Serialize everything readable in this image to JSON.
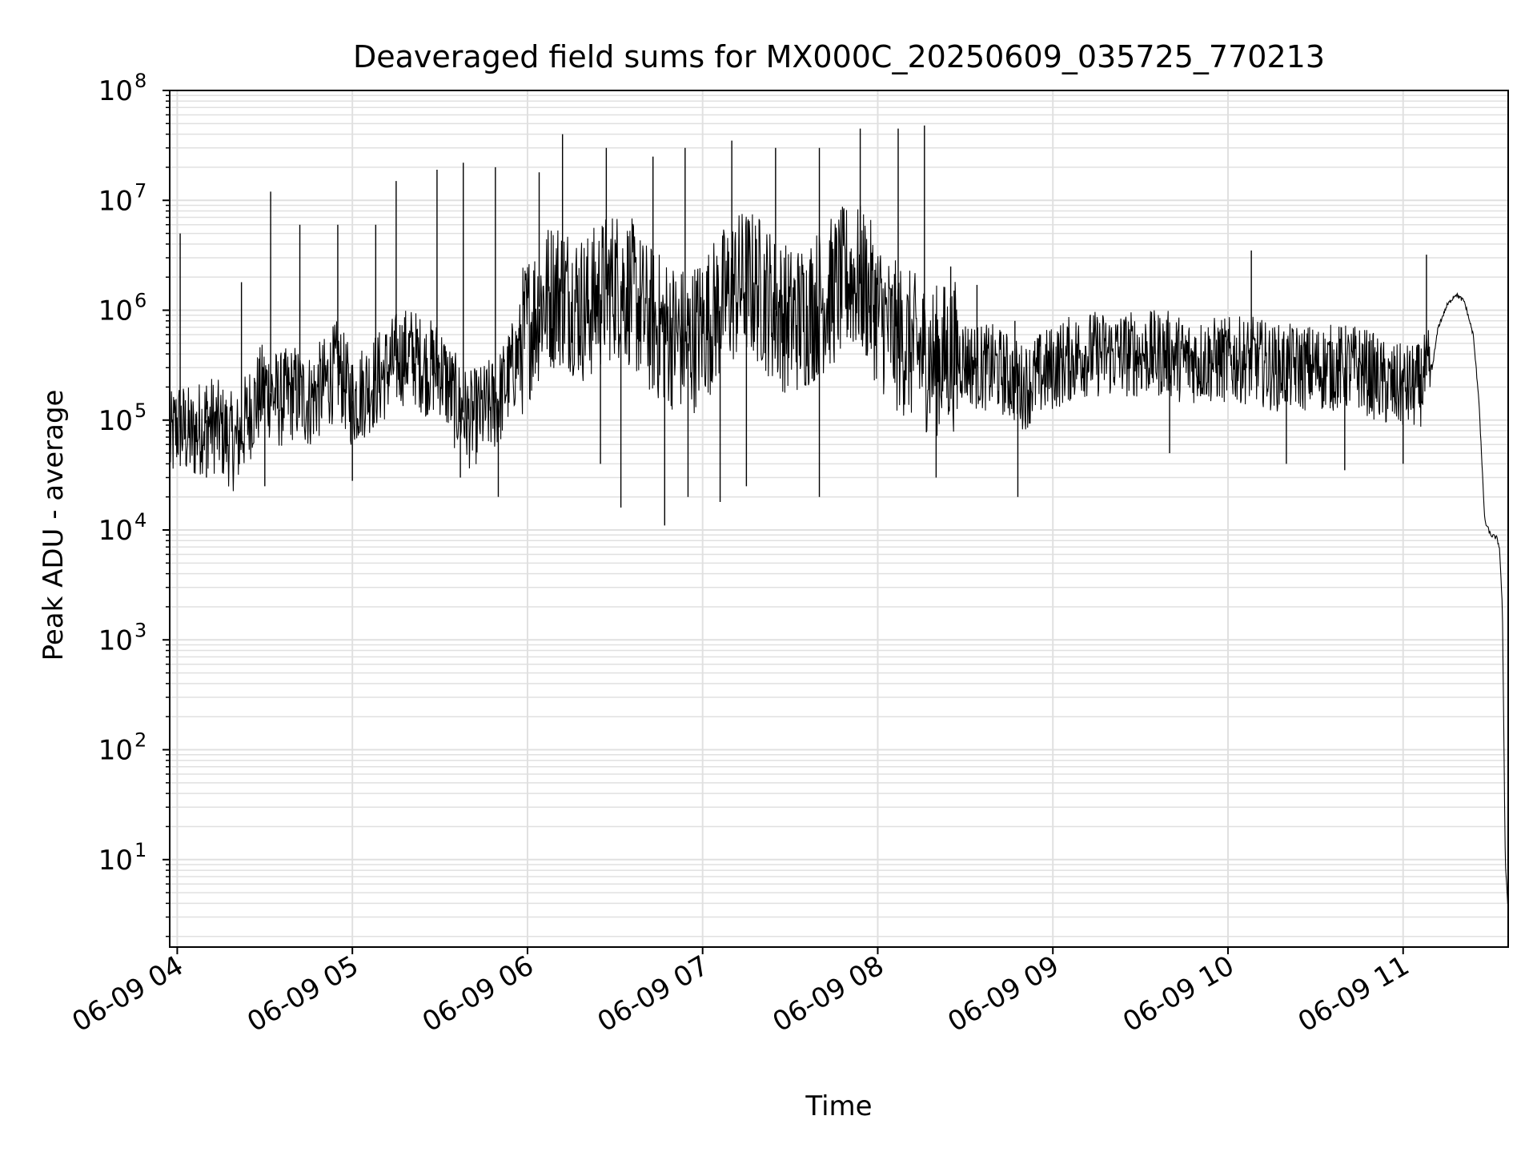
{
  "chart_data": {
    "type": "line",
    "title": "Deaveraged field sums for MX000C_20250609_035725_770213",
    "xlabel": "Time",
    "ylabel": "Peak ADU - average",
    "yscale": "log",
    "ylim": [
      1.6,
      100000000
    ],
    "xlim": [
      "2025-06-09 03:57:25",
      "2025-06-09 11:36:00"
    ],
    "grid": true,
    "legend": "none",
    "line_color": "#000000",
    "grid_color": "#e0e0e0",
    "x_ticks": [
      {
        "t": "2025-06-09 04:00",
        "label": "06-09 04"
      },
      {
        "t": "2025-06-09 05:00",
        "label": "06-09 05"
      },
      {
        "t": "2025-06-09 06:00",
        "label": "06-09 06"
      },
      {
        "t": "2025-06-09 07:00",
        "label": "06-09 07"
      },
      {
        "t": "2025-06-09 08:00",
        "label": "06-09 08"
      },
      {
        "t": "2025-06-09 09:00",
        "label": "06-09 09"
      },
      {
        "t": "2025-06-09 10:00",
        "label": "06-09 10"
      },
      {
        "t": "2025-06-09 11:00",
        "label": "06-09 11"
      }
    ],
    "y_ticks": [
      {
        "value": 10,
        "base": "10",
        "exp": "1"
      },
      {
        "value": 100,
        "base": "10",
        "exp": "2"
      },
      {
        "value": 1000,
        "base": "10",
        "exp": "3"
      },
      {
        "value": 10000,
        "base": "10",
        "exp": "4"
      },
      {
        "value": 100000,
        "base": "10",
        "exp": "5"
      },
      {
        "value": 1000000,
        "base": "10",
        "exp": "6"
      },
      {
        "value": 10000000,
        "base": "10",
        "exp": "7"
      },
      {
        "value": 100000000,
        "base": "10",
        "exp": "8"
      }
    ],
    "series": [
      {
        "points": [
          [
            "2025-06-09 03:57:30",
            60000
          ],
          [
            "2025-06-09 04:00",
            90000
          ],
          [
            "2025-06-09 04:05",
            70000
          ],
          [
            "2025-06-09 04:10",
            100000
          ],
          [
            "2025-06-09 04:15",
            80000
          ],
          [
            "2025-06-09 04:20",
            60000
          ],
          [
            "2025-06-09 04:25",
            120000
          ],
          [
            "2025-06-09 04:30",
            200000
          ],
          [
            "2025-06-09 04:35",
            150000
          ],
          [
            "2025-06-09 04:40",
            180000
          ],
          [
            "2025-06-09 04:45",
            150000
          ],
          [
            "2025-06-09 04:50",
            200000
          ],
          [
            "2025-06-09 04:55",
            300000
          ],
          [
            "2025-06-09 05:00",
            150000
          ],
          [
            "2025-06-09 05:05",
            200000
          ],
          [
            "2025-06-09 05:10",
            250000
          ],
          [
            "2025-06-09 05:15",
            350000
          ],
          [
            "2025-06-09 05:20",
            400000
          ],
          [
            "2025-06-09 05:25",
            300000
          ],
          [
            "2025-06-09 05:30",
            300000
          ],
          [
            "2025-06-09 05:35",
            150000
          ],
          [
            "2025-06-09 05:40",
            100000
          ],
          [
            "2025-06-09 05:45",
            120000
          ],
          [
            "2025-06-09 05:50",
            150000
          ],
          [
            "2025-06-09 05:55",
            300000
          ],
          [
            "2025-06-09 06:00",
            700000
          ],
          [
            "2025-06-09 06:05",
            1200000
          ],
          [
            "2025-06-09 06:10",
            1500000
          ],
          [
            "2025-06-09 06:15",
            1300000
          ],
          [
            "2025-06-09 06:20",
            1000000
          ],
          [
            "2025-06-09 06:25",
            1400000
          ],
          [
            "2025-06-09 06:30",
            1800000
          ],
          [
            "2025-06-09 06:35",
            1500000
          ],
          [
            "2025-06-09 06:40",
            900000
          ],
          [
            "2025-06-09 06:45",
            700000
          ],
          [
            "2025-06-09 06:50",
            600000
          ],
          [
            "2025-06-09 06:55",
            500000
          ],
          [
            "2025-06-09 07:00",
            700000
          ],
          [
            "2025-06-09 07:05",
            1000000
          ],
          [
            "2025-06-09 07:10",
            1500000
          ],
          [
            "2025-06-09 07:15",
            1800000
          ],
          [
            "2025-06-09 07:20",
            1500000
          ],
          [
            "2025-06-09 07:25",
            1000000
          ],
          [
            "2025-06-09 07:30",
            800000
          ],
          [
            "2025-06-09 07:35",
            900000
          ],
          [
            "2025-06-09 07:40",
            1200000
          ],
          [
            "2025-06-09 07:45",
            1500000
          ],
          [
            "2025-06-09 07:50",
            2000000
          ],
          [
            "2025-06-09 07:55",
            1800000
          ],
          [
            "2025-06-09 08:00",
            1000000
          ],
          [
            "2025-06-09 08:05",
            600000
          ],
          [
            "2025-06-09 08:10",
            500000
          ],
          [
            "2025-06-09 08:15",
            400000
          ],
          [
            "2025-06-09 08:20",
            350000
          ],
          [
            "2025-06-09 08:25",
            400000
          ],
          [
            "2025-06-09 08:30",
            350000
          ],
          [
            "2025-06-09 08:35",
            300000
          ],
          [
            "2025-06-09 08:40",
            300000
          ],
          [
            "2025-06-09 08:45",
            250000
          ],
          [
            "2025-06-09 08:50",
            200000
          ],
          [
            "2025-06-09 08:55",
            250000
          ],
          [
            "2025-06-09 09:00",
            300000
          ],
          [
            "2025-06-09 09:05",
            350000
          ],
          [
            "2025-06-09 09:10",
            400000
          ],
          [
            "2025-06-09 09:15",
            400000
          ],
          [
            "2025-06-09 09:20",
            400000
          ],
          [
            "2025-06-09 09:25",
            400000
          ],
          [
            "2025-06-09 09:30",
            400000
          ],
          [
            "2025-06-09 09:35",
            400000
          ],
          [
            "2025-06-09 09:40",
            400000
          ],
          [
            "2025-06-09 09:45",
            350000
          ],
          [
            "2025-06-09 09:50",
            350000
          ],
          [
            "2025-06-09 09:55",
            350000
          ],
          [
            "2025-06-09 10:00",
            350000
          ],
          [
            "2025-06-09 10:05",
            350000
          ],
          [
            "2025-06-09 10:10",
            350000
          ],
          [
            "2025-06-09 10:15",
            300000
          ],
          [
            "2025-06-09 10:20",
            300000
          ],
          [
            "2025-06-09 10:25",
            300000
          ],
          [
            "2025-06-09 10:30",
            300000
          ],
          [
            "2025-06-09 10:35",
            300000
          ],
          [
            "2025-06-09 10:40",
            300000
          ],
          [
            "2025-06-09 10:45",
            300000
          ],
          [
            "2025-06-09 10:50",
            250000
          ],
          [
            "2025-06-09 10:55",
            200000
          ],
          [
            "2025-06-09 11:00",
            200000
          ],
          [
            "2025-06-09 11:05",
            200000
          ],
          [
            "2025-06-09 11:10",
            300000
          ],
          [
            "2025-06-09 11:12",
            700000
          ],
          [
            "2025-06-09 11:15",
            1100000
          ],
          [
            "2025-06-09 11:18",
            1400000
          ],
          [
            "2025-06-09 11:21",
            1200000
          ],
          [
            "2025-06-09 11:24",
            600000
          ],
          [
            "2025-06-09 11:26",
            150000
          ],
          [
            "2025-06-09 11:27",
            40000
          ],
          [
            "2025-06-09 11:28",
            12000
          ],
          [
            "2025-06-09 11:30",
            9000
          ],
          [
            "2025-06-09 11:32",
            8500
          ],
          [
            "2025-06-09 11:33",
            7000
          ],
          [
            "2025-06-09 11:34",
            2000
          ],
          [
            "2025-06-09 11:35",
            10
          ],
          [
            "2025-06-09 11:35:50",
            4
          ]
        ],
        "spikes": [
          [
            "2025-06-09 04:01",
            5000000
          ],
          [
            "2025-06-09 04:22",
            1800000
          ],
          [
            "2025-06-09 04:32",
            12000000
          ],
          [
            "2025-06-09 04:42",
            6000000
          ],
          [
            "2025-06-09 04:55",
            6000000
          ],
          [
            "2025-06-09 05:08",
            6000000
          ],
          [
            "2025-06-09 05:15",
            15000000
          ],
          [
            "2025-06-09 05:29",
            19000000
          ],
          [
            "2025-06-09 05:38",
            22000000
          ],
          [
            "2025-06-09 05:49",
            20000000
          ],
          [
            "2025-06-09 06:04",
            18000000
          ],
          [
            "2025-06-09 06:12",
            40000000
          ],
          [
            "2025-06-09 06:27",
            30000000
          ],
          [
            "2025-06-09 06:43",
            25000000
          ],
          [
            "2025-06-09 06:54",
            30000000
          ],
          [
            "2025-06-09 07:10",
            35000000
          ],
          [
            "2025-06-09 07:25",
            30000000
          ],
          [
            "2025-06-09 07:40",
            30000000
          ],
          [
            "2025-06-09 07:54",
            45000000
          ],
          [
            "2025-06-09 08:07",
            45000000
          ],
          [
            "2025-06-09 08:16",
            48000000
          ],
          [
            "2025-06-09 08:25",
            2500000
          ],
          [
            "2025-06-09 08:34",
            1700000
          ],
          [
            "2025-06-09 08:47",
            800000
          ],
          [
            "2025-06-09 09:35",
            800000
          ],
          [
            "2025-06-09 10:08",
            3500000
          ],
          [
            "2025-06-09 11:08",
            3200000
          ]
        ],
        "dips": [
          [
            "2025-06-09 04:10",
            30000
          ],
          [
            "2025-06-09 04:30",
            25000
          ],
          [
            "2025-06-09 05:00",
            28000
          ],
          [
            "2025-06-09 05:37",
            30000
          ],
          [
            "2025-06-09 05:50",
            20000
          ],
          [
            "2025-06-09 06:25",
            40000
          ],
          [
            "2025-06-09 06:32",
            16000
          ],
          [
            "2025-06-09 06:47",
            11000
          ],
          [
            "2025-06-09 06:55",
            20000
          ],
          [
            "2025-06-09 07:06",
            18000
          ],
          [
            "2025-06-09 07:15",
            25000
          ],
          [
            "2025-06-09 07:40",
            20000
          ],
          [
            "2025-06-09 08:20",
            30000
          ],
          [
            "2025-06-09 08:48",
            20000
          ],
          [
            "2025-06-09 09:40",
            50000
          ],
          [
            "2025-06-09 10:20",
            40000
          ],
          [
            "2025-06-09 10:40",
            35000
          ],
          [
            "2025-06-09 11:00",
            40000
          ]
        ]
      }
    ]
  }
}
